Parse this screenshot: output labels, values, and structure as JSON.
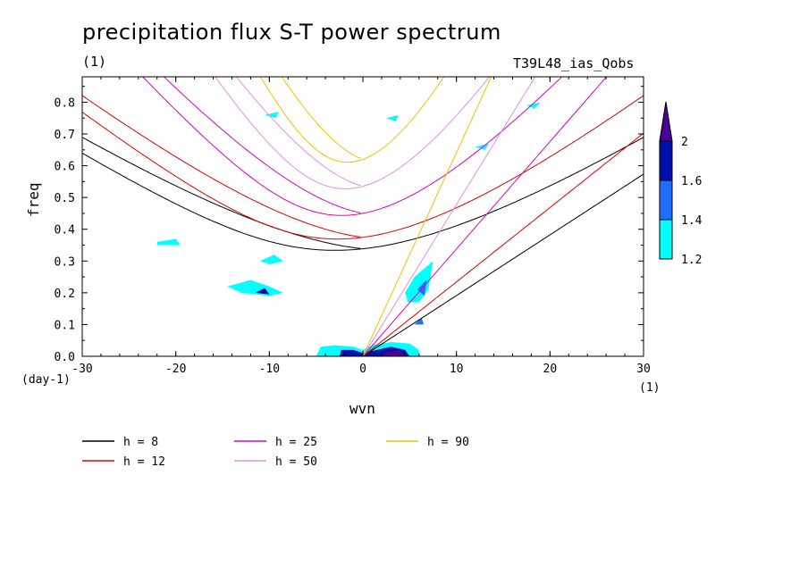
{
  "chart_data": {
    "type": "contour",
    "title": "precipitation flux S-T power spectrum",
    "subtitle_left": "(1)",
    "subtitle_right": "T39L48_ias_Qobs",
    "xlabel": "wvn",
    "ylabel": "freq",
    "x_unit": "(1)",
    "y_unit": "(day-1)",
    "xlim": [
      -30,
      30
    ],
    "ylim": [
      0,
      0.88
    ],
    "x_ticks": [
      -30,
      -20,
      -10,
      0,
      10,
      20,
      30
    ],
    "x_tick_labels": [
      "-30",
      "-20",
      "-10",
      "0",
      "10",
      "20",
      "30"
    ],
    "y_ticks": [
      0,
      0.1,
      0.2,
      0.3,
      0.4,
      0.5,
      0.6,
      0.7,
      0.8
    ],
    "y_tick_labels": [
      "0.0",
      "0.1",
      "0.2",
      "0.3",
      "0.4",
      "0.5",
      "0.6",
      "0.7",
      "0.8"
    ],
    "colorbar": {
      "levels": [
        1.2,
        1.4,
        1.6,
        2
      ],
      "labels": [
        "1.2",
        "1.4",
        "1.6",
        "2"
      ],
      "colors": [
        "#00ffff",
        "#1e6fff",
        "#0010aa",
        "#4b0096"
      ]
    },
    "dispersion_curves": [
      {
        "name": "h =  8",
        "h": 8,
        "color": "#000000"
      },
      {
        "name": "h = 12",
        "h": 12,
        "color": "#e00000"
      },
      {
        "name": "h = 25",
        "h": 25,
        "color": "#e000c0"
      },
      {
        "name": "h = 50",
        "h": 50,
        "color": "#e090e0"
      },
      {
        "name": "h = 90",
        "h": 90,
        "color": "#f0c000"
      }
    ],
    "filled_regions": [
      {
        "level": 1.2,
        "points": [
          [
            -5,
            0
          ],
          [
            -4.5,
            0.03
          ],
          [
            -3,
            0.035
          ],
          [
            -1,
            0.03
          ],
          [
            0,
            0.02
          ],
          [
            1,
            0.035
          ],
          [
            3,
            0.045
          ],
          [
            5,
            0.04
          ],
          [
            6,
            0.02
          ],
          [
            6,
            0
          ]
        ]
      },
      {
        "level": 1.6,
        "points": [
          [
            -2.5,
            0
          ],
          [
            -2.3,
            0.02
          ],
          [
            -1,
            0.02
          ],
          [
            0,
            0.01
          ],
          [
            1.5,
            0.02
          ],
          [
            3,
            0.03
          ],
          [
            4.5,
            0.02
          ],
          [
            5,
            0
          ]
        ]
      },
      {
        "level": 2,
        "points": [
          [
            2,
            0
          ],
          [
            2.5,
            0.015
          ],
          [
            4,
            0.02
          ],
          [
            4.5,
            0
          ]
        ]
      },
      {
        "level": 1.2,
        "points": [
          [
            4.5,
            0.2
          ],
          [
            5.5,
            0.25
          ],
          [
            7.5,
            0.3
          ],
          [
            7,
            0.21
          ],
          [
            6,
            0.17
          ],
          [
            4.8,
            0.17
          ]
        ]
      },
      {
        "level": 1.4,
        "points": [
          [
            5.8,
            0.21
          ],
          [
            6.8,
            0.24
          ],
          [
            6.6,
            0.19
          ]
        ]
      },
      {
        "level": 1.2,
        "points": [
          [
            -14.5,
            0.22
          ],
          [
            -12,
            0.24
          ],
          [
            -10,
            0.22
          ],
          [
            -8.5,
            0.2
          ],
          [
            -10,
            0.19
          ],
          [
            -13,
            0.2
          ]
        ]
      },
      {
        "level": 1.6,
        "points": [
          [
            -11.5,
            0.2
          ],
          [
            -10.5,
            0.215
          ],
          [
            -10,
            0.195
          ]
        ]
      },
      {
        "level": 1.2,
        "points": [
          [
            -22,
            0.36
          ],
          [
            -20,
            0.37
          ],
          [
            -19.5,
            0.35
          ],
          [
            -22,
            0.35
          ]
        ]
      },
      {
        "level": 1.2,
        "points": [
          [
            -11,
            0.3
          ],
          [
            -9.5,
            0.32
          ],
          [
            -8.5,
            0.3
          ],
          [
            -10,
            0.29
          ]
        ]
      },
      {
        "level": 1.2,
        "points": [
          [
            -10.5,
            0.76
          ],
          [
            -9,
            0.77
          ],
          [
            -9.3,
            0.75
          ]
        ]
      },
      {
        "level": 1.2,
        "points": [
          [
            2.5,
            0.75
          ],
          [
            3.8,
            0.76
          ],
          [
            3.5,
            0.74
          ]
        ]
      },
      {
        "level": 1.2,
        "points": [
          [
            12,
            0.66
          ],
          [
            13.5,
            0.67
          ],
          [
            13,
            0.65
          ]
        ]
      },
      {
        "level": 1.2,
        "points": [
          [
            17.5,
            0.79
          ],
          [
            19,
            0.8
          ],
          [
            18.3,
            0.78
          ]
        ]
      },
      {
        "level": 1.4,
        "points": [
          [
            5.5,
            0.1
          ],
          [
            6.3,
            0.12
          ],
          [
            6.5,
            0.1
          ]
        ]
      }
    ]
  }
}
